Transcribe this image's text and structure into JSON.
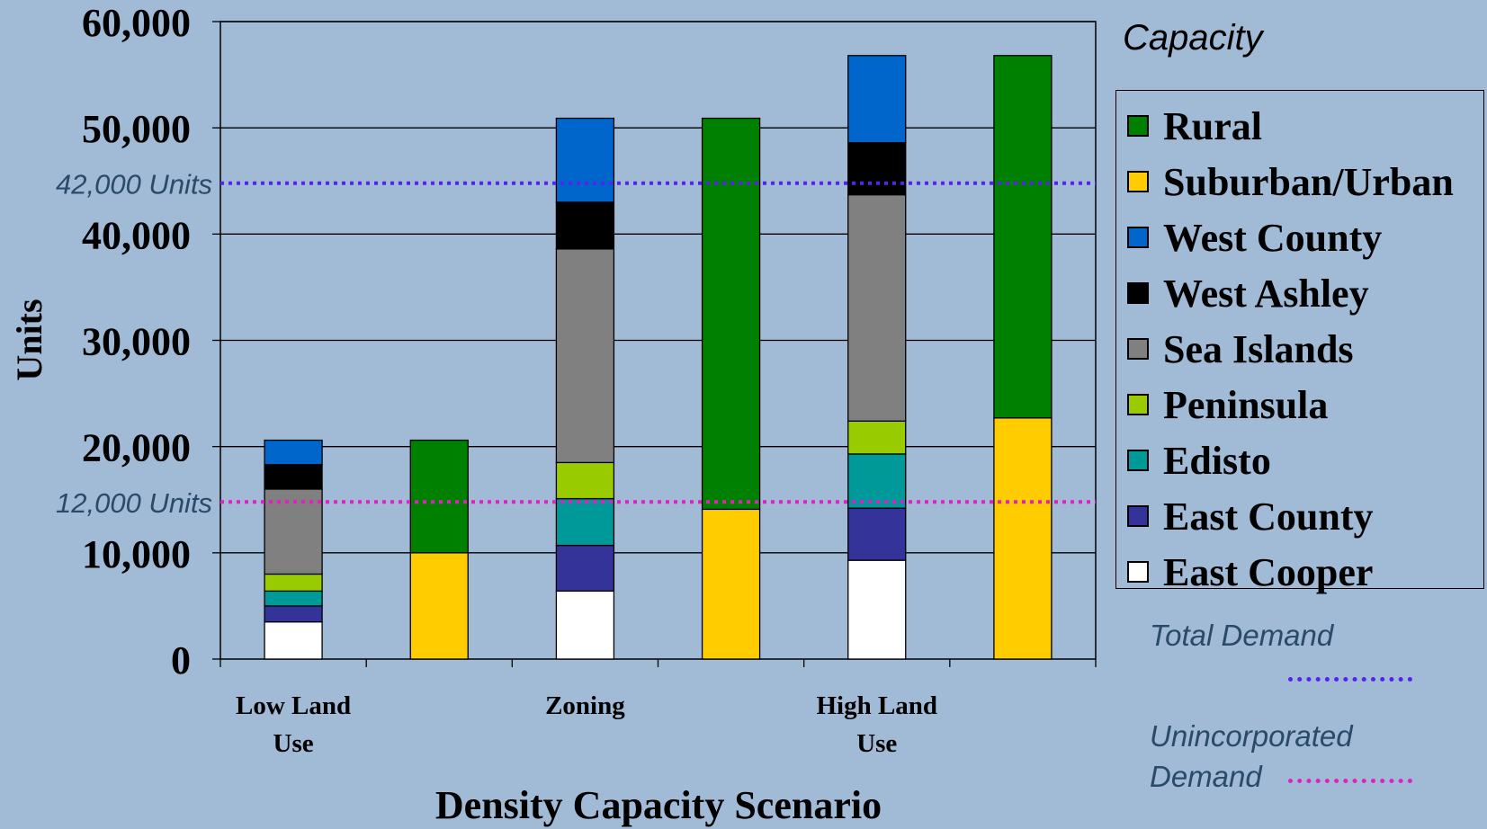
{
  "chart_data": {
    "type": "bar",
    "stacked": true,
    "xlabel": "Density Capacity Scenario",
    "ylabel": "Units",
    "ylim": [
      0,
      60000
    ],
    "yticks": [
      0,
      10000,
      20000,
      30000,
      40000,
      50000,
      60000
    ],
    "ytick_labels": [
      "0",
      "10,000",
      "20,000",
      "30,000",
      "40,000",
      "50,000",
      "60,000"
    ],
    "category_labels": [
      {
        "line1": "Low Land",
        "line2": "Use"
      },
      {
        "line1": "Zoning",
        "line2": ""
      },
      {
        "line1": "High Land",
        "line2": "Use"
      }
    ],
    "legend_title": "Capacity",
    "legend_position": "right",
    "series_names": [
      "Rural",
      "Suburban/Urban",
      "West County",
      "West Ashley",
      "Sea Islands",
      "Peninsula",
      "Edisto",
      "East County",
      "East Cooper"
    ],
    "colors": {
      "Rural": "#008000",
      "Suburban/Urban": "#ffcc00",
      "West County": "#0066cc",
      "West Ashley": "#000000",
      "Sea Islands": "#808080",
      "Peninsula": "#99cc00",
      "Edisto": "#009999",
      "East County": "#333399",
      "East Cooper": "#ffffff"
    },
    "bars": [
      {
        "group": 0,
        "segments": [
          {
            "series": "East Cooper",
            "value": 3500
          },
          {
            "series": "East County",
            "value": 1500
          },
          {
            "series": "Edisto",
            "value": 1400
          },
          {
            "series": "Peninsula",
            "value": 1600
          },
          {
            "series": "Sea Islands",
            "value": 8000
          },
          {
            "series": "West Ashley",
            "value": 2300
          },
          {
            "series": "West County",
            "value": 2300
          }
        ]
      },
      {
        "group": 0,
        "segments": [
          {
            "series": "Suburban/Urban",
            "value": 10000
          },
          {
            "series": "Rural",
            "value": 10600
          }
        ]
      },
      {
        "group": 1,
        "segments": [
          {
            "series": "East Cooper",
            "value": 6400
          },
          {
            "series": "East County",
            "value": 4300
          },
          {
            "series": "Edisto",
            "value": 4400
          },
          {
            "series": "Peninsula",
            "value": 3400
          },
          {
            "series": "Sea Islands",
            "value": 20100
          },
          {
            "series": "West Ashley",
            "value": 4400
          },
          {
            "series": "West County",
            "value": 7900
          }
        ]
      },
      {
        "group": 1,
        "segments": [
          {
            "series": "Suburban/Urban",
            "value": 14100
          },
          {
            "series": "Rural",
            "value": 36800
          }
        ]
      },
      {
        "group": 2,
        "segments": [
          {
            "series": "East Cooper",
            "value": 9300
          },
          {
            "series": "East County",
            "value": 4900
          },
          {
            "series": "Edisto",
            "value": 5100
          },
          {
            "series": "Peninsula",
            "value": 3100
          },
          {
            "series": "Sea Islands",
            "value": 21300
          },
          {
            "series": "West Ashley",
            "value": 4900
          },
          {
            "series": "West County",
            "value": 8200
          }
        ]
      },
      {
        "group": 2,
        "segments": [
          {
            "series": "Suburban/Urban",
            "value": 22700
          },
          {
            "series": "Rural",
            "value": 34100
          }
        ]
      }
    ],
    "reference_lines": [
      {
        "name": "Total Demand",
        "label": "42,000 Units",
        "value": 42000,
        "color": "#5522ee"
      },
      {
        "name": "Unincorporated Demand",
        "label": "12,000 Units",
        "value": 12000,
        "color": "#e020c0"
      }
    ],
    "reference_legend": {
      "total_label": "Total Demand",
      "uninc_line1": "Unincorporated",
      "uninc_line2": "Demand"
    }
  }
}
